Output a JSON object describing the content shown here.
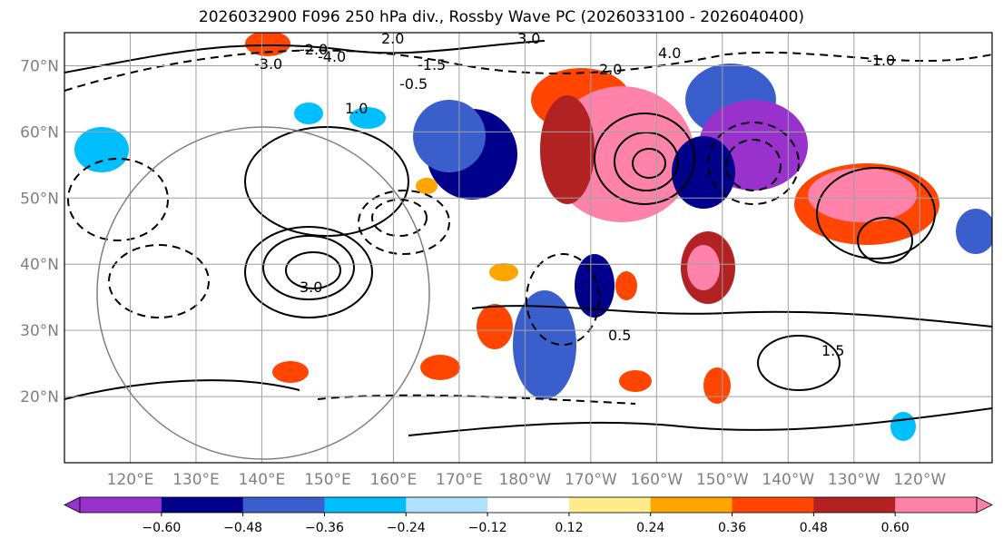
{
  "title": "2026032900 F096 250 hPa div., Rossby Wave PC (2026033100 - 2026040400)",
  "map": {
    "lat_labels": [
      "70°N",
      "60°N",
      "50°N",
      "40°N",
      "30°N",
      "20°N"
    ],
    "lon_labels": [
      "120°E",
      "130°E",
      "140°E",
      "150°E",
      "160°E",
      "170°E",
      "180°W",
      "170°W",
      "160°W",
      "150°W",
      "140°W",
      "130°W",
      "120°W"
    ],
    "lat_values": [
      70,
      60,
      50,
      40,
      30,
      20
    ],
    "lon_values": [
      120,
      130,
      140,
      150,
      160,
      170,
      180,
      190,
      200,
      210,
      220,
      230,
      240
    ],
    "lon_range": [
      110,
      251
    ],
    "lat_range": [
      10,
      75
    ],
    "contour_labels": [
      "2.0",
      "3.0",
      "4.0",
      "-1.0",
      "1.0",
      "-0.5",
      "0.5",
      "1.5",
      "-1.5",
      "-2.0",
      "-3.0",
      "-4.0",
      "2.0",
      "3.0"
    ]
  },
  "colorbar": {
    "tick_labels": [
      "−0.60",
      "−0.48",
      "−0.36",
      "−0.24",
      "−0.12",
      "0.12",
      "0.24",
      "0.36",
      "0.48",
      "0.60"
    ],
    "colors": [
      "#9932cc",
      "#00008b",
      "#3a5fcd",
      "#00bfff",
      "#b0e2ff",
      "#ffffff",
      "#ffec8b",
      "#ffa500",
      "#ff4500",
      "#b22222",
      "#ff82ab"
    ]
  }
}
